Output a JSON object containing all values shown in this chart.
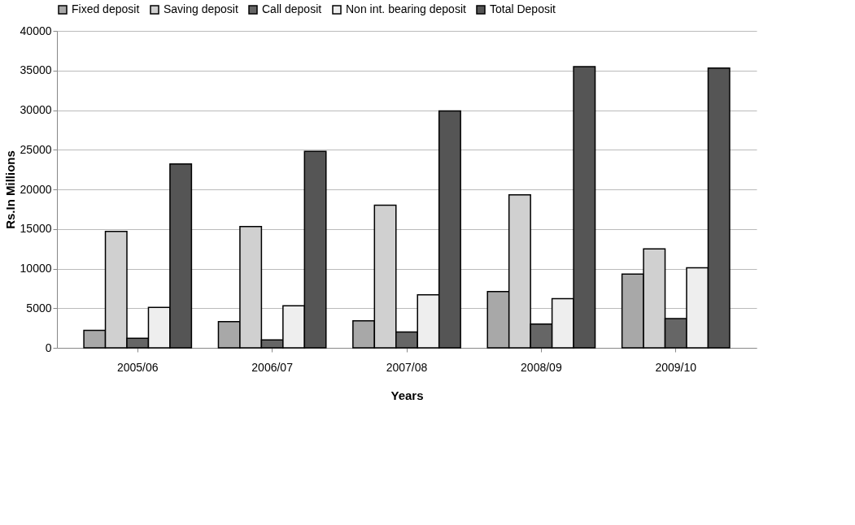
{
  "chart_data": {
    "type": "bar",
    "xlabel": "Years",
    "ylabel": "Rs.In Millions",
    "categories": [
      "2005/06",
      "2006/07",
      "2007/08",
      "2008/09",
      "2009/10"
    ],
    "series": [
      {
        "name": "Fixed deposit",
        "color": "#a8a8a8",
        "values": [
          2200,
          3300,
          3400,
          7100,
          9300
        ]
      },
      {
        "name": "Saving deposit",
        "color": "#d0d0d0",
        "values": [
          14700,
          15300,
          18000,
          19300,
          12500
        ]
      },
      {
        "name": "Call deposit",
        "color": "#666666",
        "values": [
          1200,
          1000,
          2000,
          3000,
          3700
        ]
      },
      {
        "name": "Non int. bearing deposit",
        "color": "#eeeeee",
        "values": [
          5100,
          5300,
          6700,
          6200,
          10100
        ]
      },
      {
        "name": "Total Deposit",
        "color": "#555555",
        "values": [
          23200,
          24800,
          29900,
          35500,
          35300
        ]
      }
    ],
    "ylim": [
      0,
      40000
    ],
    "yticks": [
      0,
      5000,
      10000,
      15000,
      20000,
      25000,
      30000,
      35000,
      40000
    ],
    "grid": "y",
    "legend": "top"
  }
}
